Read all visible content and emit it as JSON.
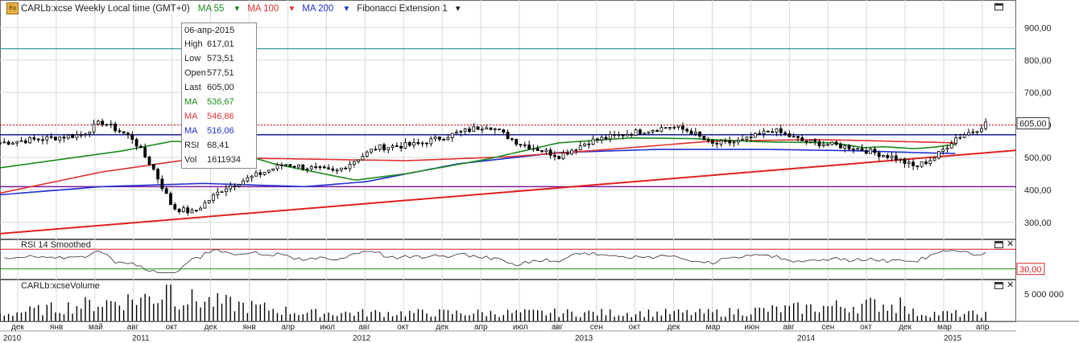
{
  "header": {
    "symbol": "CARLb:xcse Weekly Local time (GMT+0)",
    "ma55": "MA 55",
    "ma100": "MA 100",
    "ma200": "MA 200",
    "fib": "Fibonacci Extension 1",
    "icon_name": "eq-icon",
    "icon_text": "Eq"
  },
  "tooltip": {
    "date": "06-апр-2015",
    "rows": [
      {
        "k": "High",
        "v": "617,01",
        "color": "#222222"
      },
      {
        "k": "Low",
        "v": "573,51",
        "color": "#222222"
      },
      {
        "k": "Open",
        "v": "577,51",
        "color": "#222222"
      },
      {
        "k": "Last",
        "v": "605,00",
        "color": "#222222"
      },
      {
        "k": "MA",
        "v": "536,67",
        "color": "#1a8a1a"
      },
      {
        "k": "MA",
        "v": "546,86",
        "color": "#e03030"
      },
      {
        "k": "MA",
        "v": "516,06",
        "color": "#2030d0"
      },
      {
        "k": "RSI",
        "v": "68,41",
        "color": "#222222"
      },
      {
        "k": "Vol",
        "v": "1611934",
        "color": "#222222"
      }
    ]
  },
  "rsi_panel": {
    "title": "RSI 14 Smoothed",
    "level_label": "30,00"
  },
  "volume_panel": {
    "title": "CARLb:xcseVolume",
    "tick": "5 000 000"
  },
  "last_price_label": "605,00",
  "colors": {
    "ma55": "#1a8a1a",
    "ma100": "#e03030",
    "ma200": "#2030d0",
    "support": "#7a1aa0",
    "resistance": "#1a1a9a",
    "dotted": "#d02020",
    "teal": "#3a9a9a",
    "candle": "#000000"
  },
  "chart_data": {
    "type": "candlestick",
    "y_ticks": [
      "900,00",
      "800,00",
      "700,00",
      "600,00",
      "500,00",
      "400,00",
      "300,00"
    ],
    "y_tick_values": [
      900,
      800,
      700,
      600,
      500,
      400,
      300
    ],
    "ylim": [
      250,
      985
    ],
    "month_labels": [
      "дек",
      "янв",
      "май",
      "авг",
      "окт",
      "дек",
      "янв",
      "апр",
      "июл",
      "авг",
      "окт",
      "дек",
      "апр",
      "июл",
      "авг",
      "сен",
      "окт",
      "дек",
      "мар",
      "июн",
      "авг",
      "сен",
      "окт",
      "дек",
      "мар",
      "апр"
    ],
    "year_labels": [
      "2010",
      "2011",
      "2012",
      "2013",
      "2014",
      "2015"
    ],
    "levels": {
      "teal_horizontal": 835,
      "dotted_resistance": 600,
      "resistance_line": 570,
      "support_line": 410
    },
    "trendline": {
      "from": 265,
      "to": 522
    },
    "ma55_points": [
      [
        0,
        468
      ],
      [
        0.12,
        520
      ],
      [
        0.17,
        550
      ],
      [
        0.2,
        545
      ],
      [
        0.27,
        480
      ],
      [
        0.35,
        430
      ],
      [
        0.4,
        450
      ],
      [
        0.48,
        495
      ],
      [
        0.55,
        545
      ],
      [
        0.62,
        560
      ],
      [
        0.68,
        558
      ],
      [
        0.75,
        548
      ],
      [
        0.82,
        545
      ],
      [
        0.85,
        530
      ],
      [
        0.87,
        533
      ],
      [
        0.9,
        527
      ],
      [
        0.92,
        532
      ],
      [
        0.94,
        540
      ]
    ],
    "ma100_points": [
      [
        0,
        390
      ],
      [
        0.1,
        455
      ],
      [
        0.2,
        500
      ],
      [
        0.3,
        495
      ],
      [
        0.4,
        490
      ],
      [
        0.5,
        502
      ],
      [
        0.6,
        525
      ],
      [
        0.7,
        550
      ],
      [
        0.8,
        555
      ],
      [
        0.85,
        552
      ],
      [
        0.9,
        548
      ],
      [
        0.94,
        545
      ]
    ],
    "ma200_points": [
      [
        0,
        385
      ],
      [
        0.1,
        410
      ],
      [
        0.2,
        420
      ],
      [
        0.3,
        410
      ],
      [
        0.36,
        425
      ],
      [
        0.45,
        480
      ],
      [
        0.55,
        515
      ],
      [
        0.65,
        525
      ],
      [
        0.75,
        525
      ],
      [
        0.85,
        520
      ],
      [
        0.9,
        515
      ],
      [
        0.94,
        512
      ]
    ],
    "price_waypoints": [
      [
        0,
        545
      ],
      [
        0.05,
        560
      ],
      [
        0.08,
        570
      ],
      [
        0.1,
        610
      ],
      [
        0.13,
        560
      ],
      [
        0.15,
        470
      ],
      [
        0.17,
        345
      ],
      [
        0.19,
        330
      ],
      [
        0.22,
        405
      ],
      [
        0.28,
        480
      ],
      [
        0.33,
        455
      ],
      [
        0.37,
        530
      ],
      [
        0.41,
        540
      ],
      [
        0.45,
        575
      ],
      [
        0.48,
        600
      ],
      [
        0.51,
        545
      ],
      [
        0.55,
        505
      ],
      [
        0.58,
        550
      ],
      [
        0.62,
        575
      ],
      [
        0.66,
        595
      ],
      [
        0.68,
        580
      ],
      [
        0.7,
        540
      ],
      [
        0.73,
        550
      ],
      [
        0.76,
        585
      ],
      [
        0.79,
        550
      ],
      [
        0.84,
        530
      ],
      [
        0.88,
        500
      ],
      [
        0.9,
        470
      ],
      [
        0.92,
        500
      ],
      [
        0.94,
        560
      ],
      [
        0.96,
        585
      ],
      [
        0.97,
        605
      ]
    ],
    "rsi_level": 30,
    "volume_waypoints": [
      [
        0,
        0.25
      ],
      [
        0.16,
        0.9
      ],
      [
        0.3,
        0.3
      ],
      [
        0.5,
        0.3
      ],
      [
        0.7,
        0.3
      ],
      [
        0.87,
        0.62
      ],
      [
        0.9,
        0.3
      ],
      [
        0.97,
        0.25
      ]
    ]
  }
}
